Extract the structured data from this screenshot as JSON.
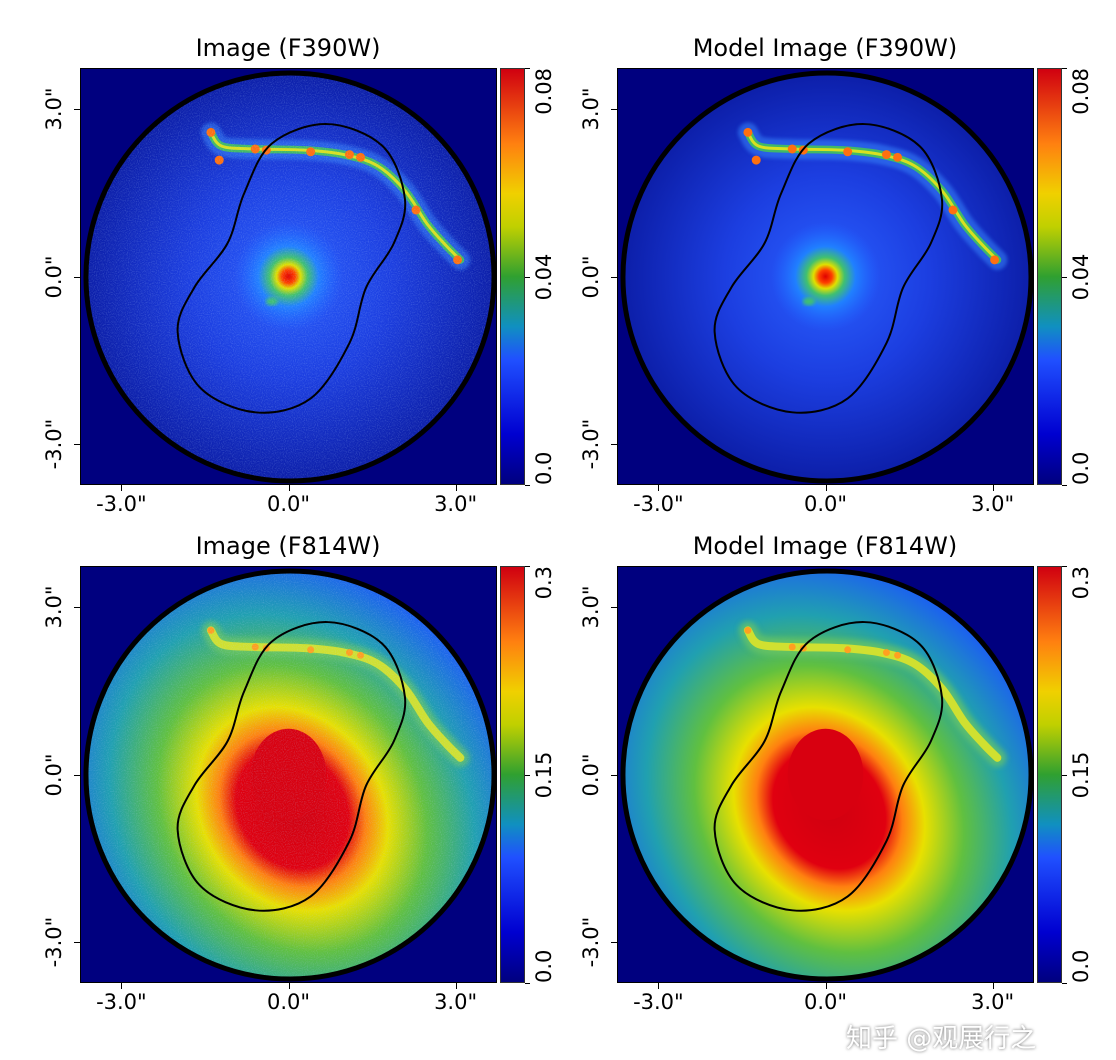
{
  "chart_data": [
    {
      "type": "heatmap",
      "title": "Image (F390W)",
      "xticks": [
        "-3.0\"",
        "0.0\"",
        "3.0\""
      ],
      "yticks": [
        "3.0\"",
        "0.0\"",
        "-3.0\""
      ],
      "xlim_arcsec": [
        -3.75,
        3.75
      ],
      "ylim_arcsec": [
        -3.75,
        3.75
      ],
      "colorbar": {
        "range": [
          0.0,
          0.08
        ],
        "ticks": [
          "0.0",
          "0.04",
          "0.08"
        ],
        "colormap": "jet"
      },
      "kind": "observed",
      "band": "blue"
    },
    {
      "type": "heatmap",
      "title": "Model Image (F390W)",
      "xticks": [
        "-3.0\"",
        "0.0\"",
        "3.0\""
      ],
      "yticks": [
        "3.0\"",
        "0.0\"",
        "-3.0\""
      ],
      "xlim_arcsec": [
        -3.75,
        3.75
      ],
      "ylim_arcsec": [
        -3.75,
        3.75
      ],
      "colorbar": {
        "range": [
          0.0,
          0.08
        ],
        "ticks": [
          "0.0",
          "0.04",
          "0.08"
        ],
        "colormap": "jet"
      },
      "kind": "model",
      "band": "blue"
    },
    {
      "type": "heatmap",
      "title": "Image (F814W)",
      "xticks": [
        "-3.0\"",
        "0.0\"",
        "3.0\""
      ],
      "yticks": [
        "3.0\"",
        "0.0\"",
        "-3.0\""
      ],
      "xlim_arcsec": [
        -3.75,
        3.75
      ],
      "ylim_arcsec": [
        -3.75,
        3.75
      ],
      "colorbar": {
        "range": [
          0.0,
          0.3
        ],
        "ticks": [
          "0.0",
          "0.15",
          "0.3"
        ],
        "colormap": "jet"
      },
      "kind": "observed",
      "band": "red"
    },
    {
      "type": "heatmap",
      "title": "Model Image (F814W)",
      "xticks": [
        "-3.0\"",
        "0.0\"",
        "3.0\""
      ],
      "yticks": [
        "3.0\"",
        "0.0\"",
        "-3.0\""
      ],
      "xlim_arcsec": [
        -3.75,
        3.75
      ],
      "ylim_arcsec": [
        -3.75,
        3.75
      ],
      "colorbar": {
        "range": [
          0.0,
          0.3
        ],
        "ticks": [
          "0.0",
          "0.15",
          "0.3"
        ],
        "colormap": "jet"
      },
      "kind": "model",
      "band": "red"
    }
  ],
  "watermark": "知乎 @观展行之",
  "colors": {
    "background": "#00007f",
    "curve": "#000000"
  }
}
